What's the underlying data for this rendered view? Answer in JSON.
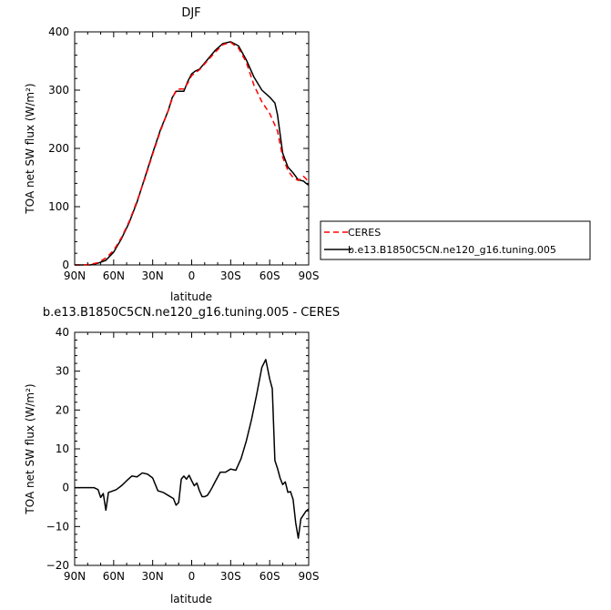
{
  "chart_data": [
    {
      "type": "line",
      "title": "DJF",
      "xlabel": "latitude",
      "ylabel": "TOA net SW flux (W/m²)",
      "xlim": [
        90,
        -90
      ],
      "ylim": [
        0,
        400
      ],
      "xticks": [
        90,
        60,
        30,
        0,
        -30,
        -60,
        -90
      ],
      "xtick_labels": [
        "90N",
        "60N",
        "30N",
        "0",
        "30S",
        "60S",
        "90S"
      ],
      "yticks": [
        0,
        100,
        200,
        300,
        400
      ],
      "ytick_labels": [
        "0",
        "100",
        "200",
        "300",
        "400"
      ],
      "grid": false,
      "legend_position": "right",
      "series": [
        {
          "name": "CERES",
          "color": "#ff0000",
          "dash": "dashed",
          "x": [
            90,
            84,
            78,
            72,
            66,
            60,
            54,
            48,
            42,
            36,
            30,
            24,
            18,
            15,
            12,
            9,
            6,
            3,
            0,
            -3,
            -6,
            -12,
            -18,
            -24,
            -30,
            -36,
            -42,
            -48,
            -54,
            -60,
            -66,
            -70,
            -74,
            -78,
            -82,
            -86,
            -88,
            -90
          ],
          "y": [
            0,
            0,
            1,
            4,
            12,
            25,
            47,
            75,
            110,
            148,
            190,
            230,
            265,
            285,
            300,
            302,
            302,
            312,
            325,
            330,
            335,
            350,
            365,
            378,
            382,
            372,
            348,
            308,
            280,
            260,
            230,
            185,
            162,
            150,
            145,
            152,
            148,
            140
          ]
        },
        {
          "name": "b.e13.B1850C5CN.ne120_g16.tuning.005",
          "color": "#000000",
          "dash": "solid",
          "x": [
            90,
            84,
            78,
            72,
            66,
            60,
            54,
            48,
            42,
            36,
            30,
            24,
            18,
            15,
            12,
            9,
            6,
            3,
            0,
            -3,
            -6,
            -12,
            -18,
            -24,
            -30,
            -36,
            -42,
            -48,
            -54,
            -60,
            -64,
            -66,
            -70,
            -74,
            -78,
            -82,
            -86,
            -88,
            -90
          ],
          "y": [
            0,
            0,
            0,
            3,
            8,
            22,
            45,
            73,
            108,
            150,
            192,
            232,
            265,
            287,
            298,
            298,
            298,
            315,
            328,
            333,
            336,
            352,
            368,
            380,
            383,
            376,
            352,
            322,
            300,
            288,
            278,
            258,
            192,
            168,
            158,
            146,
            144,
            140,
            137
          ]
        }
      ]
    },
    {
      "type": "line",
      "title": "b.e13.B1850C5CN.ne120_g16.tuning.005 - CERES",
      "xlabel": "latitude",
      "ylabel": "TOA net SW flux (W/m²)",
      "xlim": [
        90,
        -90
      ],
      "ylim": [
        -20,
        40
      ],
      "xticks": [
        90,
        60,
        30,
        0,
        -30,
        -60,
        -90
      ],
      "xtick_labels": [
        "90N",
        "60N",
        "30N",
        "0",
        "30S",
        "60S",
        "90S"
      ],
      "yticks": [
        -20,
        -10,
        0,
        10,
        20,
        30,
        40
      ],
      "ytick_labels": [
        "−20",
        "−10",
        "0",
        "10",
        "20",
        "30",
        "40"
      ],
      "grid": false,
      "series": [
        {
          "color": "#000000",
          "dash": "solid",
          "x": [
            90,
            80,
            75,
            72,
            70,
            68,
            66,
            64,
            62,
            58,
            54,
            50,
            46,
            42,
            38,
            34,
            30,
            26,
            22,
            18,
            14,
            12,
            10,
            8,
            6,
            4,
            2,
            0,
            -2,
            -4,
            -6,
            -8,
            -10,
            -12,
            -14,
            -16,
            -18,
            -22,
            -26,
            -30,
            -34,
            -38,
            -42,
            -46,
            -50,
            -54,
            -57,
            -60,
            -62,
            -64,
            -66,
            -68,
            -70,
            -72,
            -74,
            -76,
            -78,
            -80,
            -82,
            -84,
            -86,
            -88,
            -90
          ],
          "y": [
            0,
            0,
            0,
            -0.5,
            -2.5,
            -1.5,
            -5.8,
            -1.2,
            -1,
            -0.5,
            0.5,
            1.8,
            3,
            2.8,
            3.8,
            3.5,
            2.5,
            -0.8,
            -1.2,
            -2,
            -2.8,
            -4.5,
            -3.8,
            2.2,
            3,
            2.2,
            3.2,
            1.8,
            0.5,
            1.2,
            -0.8,
            -2.3,
            -2.3,
            -2,
            -1,
            0.2,
            1.5,
            4,
            4,
            4.8,
            4.5,
            7.5,
            12,
            17.5,
            24,
            31,
            33,
            28,
            25.5,
            7,
            5,
            2.5,
            0.8,
            1.5,
            -1.2,
            -1,
            -3,
            -9,
            -13,
            -8,
            -7,
            -6,
            -5.5
          ]
        }
      ]
    }
  ]
}
